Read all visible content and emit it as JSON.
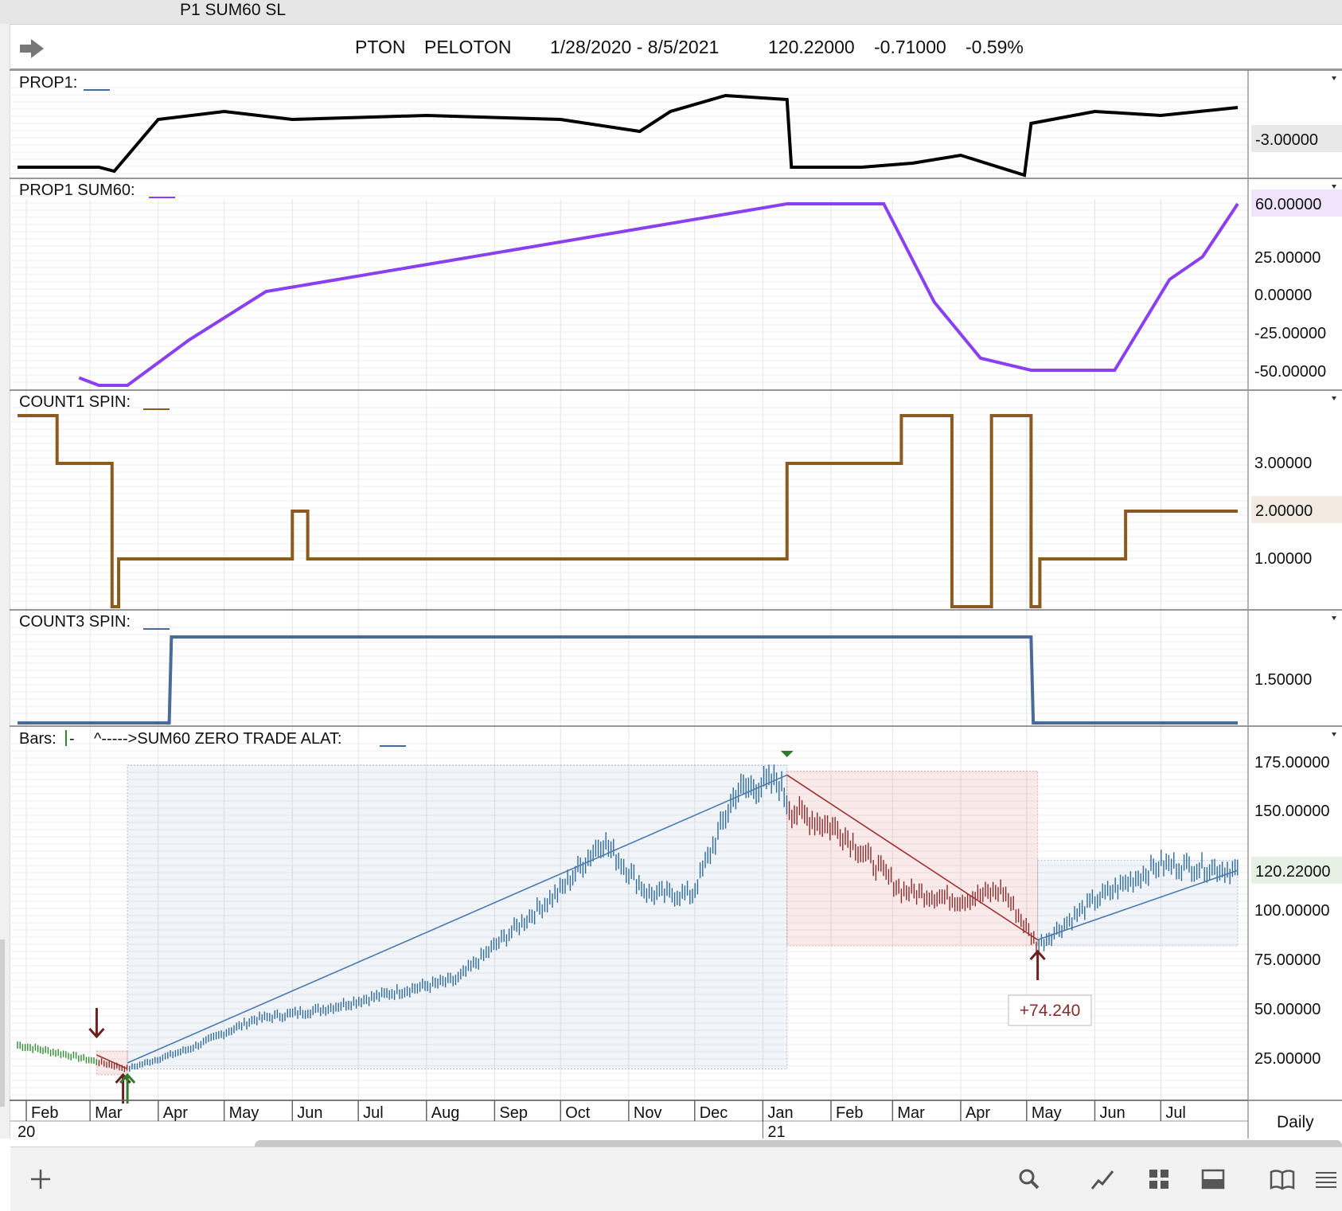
{
  "window": {
    "title": "P1 SUM60 SL"
  },
  "header": {
    "symbol": "PTON",
    "name": "PELOTON",
    "range": "1/28/2020 - 8/5/2021",
    "last": "120.22000",
    "change": "-0.71000",
    "pct": "-0.59%"
  },
  "panels": {
    "prop1": {
      "label": "PROP1:",
      "value_badge": "-3.00000",
      "color": "#000000"
    },
    "sum60": {
      "label": "PROP1 SUM60:",
      "value_badge": "60.00000",
      "ticks": [
        "25.00000",
        "0.00000",
        "-25.00000",
        "-50.00000"
      ],
      "color": "#8a40f0"
    },
    "count1": {
      "label": "COUNT1 SPIN:",
      "value_badge": "2.00000",
      "ticks": [
        "3.00000",
        "1.00000"
      ],
      "color": "#8b5a1e"
    },
    "count3": {
      "label": "COUNT3 SPIN:",
      "ticks": [
        "1.50000"
      ],
      "color": "#4a6b9a"
    },
    "bars": {
      "label": "Bars:",
      "extra": "^----->SUM60 ZERO TRADE  ALAT:",
      "value_badge": "120.22000",
      "ticks": [
        "175.00000",
        "150.00000",
        "100.00000",
        "75.00000",
        "50.00000",
        "25.00000"
      ],
      "trade_label": "+74.240"
    }
  },
  "xaxis": {
    "months": [
      "Feb",
      "Mar",
      "Apr",
      "May",
      "Jun",
      "Jul",
      "Aug",
      "Sep",
      "Oct",
      "Nov",
      "Dec",
      "Jan",
      "Feb",
      "Mar",
      "Apr",
      "May",
      "Jun",
      "Jul"
    ],
    "years": [
      "20",
      "21"
    ],
    "period": "Daily"
  },
  "chart_data": [
    {
      "type": "line",
      "title": "PROP1",
      "series": [
        {
          "name": "PROP1",
          "x": [
            "2020-01-28",
            "2020-03-05",
            "2020-03-12",
            "2020-04-01",
            "2020-05-01",
            "2020-06-01",
            "2020-08-01",
            "2020-10-01",
            "2020-11-06",
            "2020-11-20",
            "2020-12-15",
            "2021-01-12",
            "2021-01-14",
            "2021-02-15",
            "2021-03-10",
            "2021-04-01",
            "2021-04-30",
            "2021-05-03",
            "2021-06-01",
            "2021-07-01",
            "2021-08-05"
          ],
          "values": [
            -18,
            -18,
            -19,
            -6,
            -4,
            -6,
            -5,
            -6,
            -9,
            -4,
            0,
            -1,
            -18,
            -18,
            -17,
            -15,
            -20,
            -7,
            -4,
            -5,
            -3
          ]
        }
      ]
    },
    {
      "type": "line",
      "title": "PROP1 SUM60",
      "series": [
        {
          "name": "PROP1 SUM60",
          "x": [
            "2020-02-25",
            "2020-03-05",
            "2020-03-18",
            "2020-04-15",
            "2020-05-20",
            "2021-01-12",
            "2021-02-25",
            "2021-03-20",
            "2021-04-10",
            "2021-05-03",
            "2021-06-10",
            "2021-07-05",
            "2021-07-20",
            "2021-08-05"
          ],
          "values": [
            -55,
            -60,
            -60,
            -30,
            2,
            60,
            60,
            -5,
            -42,
            -50,
            -50,
            10,
            25,
            60
          ]
        }
      ]
    },
    {
      "type": "line",
      "title": "COUNT1 SPIN",
      "series": [
        {
          "name": "COUNT1 SPIN",
          "x": [
            "2020-01-28",
            "2020-02-15",
            "2020-03-11",
            "2020-03-14",
            "2020-06-01",
            "2020-06-08",
            "2021-01-12",
            "2021-03-05",
            "2021-03-28",
            "2021-04-15",
            "2021-05-03",
            "2021-05-07",
            "2021-06-15",
            "2021-08-05"
          ],
          "values": [
            4,
            3,
            0,
            1,
            2,
            1,
            3,
            4,
            0,
            4,
            0,
            1,
            2,
            2
          ]
        }
      ]
    },
    {
      "type": "line",
      "title": "COUNT3 SPIN",
      "series": [
        {
          "name": "COUNT3 SPIN",
          "x": [
            "2020-01-28",
            "2020-04-06",
            "2020-04-07",
            "2021-05-03",
            "2021-05-04",
            "2021-08-05"
          ],
          "values": [
            1,
            1,
            2,
            2,
            1,
            1
          ]
        }
      ]
    },
    {
      "type": "line",
      "title": "Bars",
      "ylim": [
        0,
        185
      ],
      "series": [
        {
          "name": "PTON",
          "x": [
            "2020-01-28",
            "2020-02-20",
            "2020-03-18",
            "2020-04-15",
            "2020-05-15",
            "2020-06-15",
            "2020-07-15",
            "2020-08-15",
            "2020-09-01",
            "2020-10-01",
            "2020-10-20",
            "2020-11-10",
            "2020-11-30",
            "2020-12-20",
            "2021-01-08",
            "2021-01-14",
            "2021-02-05",
            "2021-03-05",
            "2021-04-01",
            "2021-04-20",
            "2021-05-06",
            "2021-06-01",
            "2021-07-01",
            "2021-08-05"
          ],
          "values": [
            32,
            27,
            20,
            30,
            45,
            50,
            58,
            65,
            82,
            110,
            135,
            108,
            108,
            160,
            165,
            150,
            140,
            110,
            105,
            110,
            82,
            105,
            123,
            120
          ]
        }
      ],
      "trades": [
        {
          "side": "short",
          "entry": "2020-03-04",
          "exit": "2020-03-18",
          "entry_price": 27,
          "exit_price": 20
        },
        {
          "side": "long",
          "entry": "2020-03-18",
          "exit": "2021-01-12",
          "entry_price": 23,
          "exit_price": 168
        },
        {
          "side": "short",
          "entry": "2021-01-12",
          "exit": "2021-05-06",
          "entry_price": 168,
          "exit_price": 85
        },
        {
          "side": "long",
          "entry": "2021-05-06",
          "exit": "2021-08-05",
          "entry_price": 85,
          "exit_price": 120
        }
      ],
      "annotations": [
        "+74.240"
      ]
    }
  ]
}
